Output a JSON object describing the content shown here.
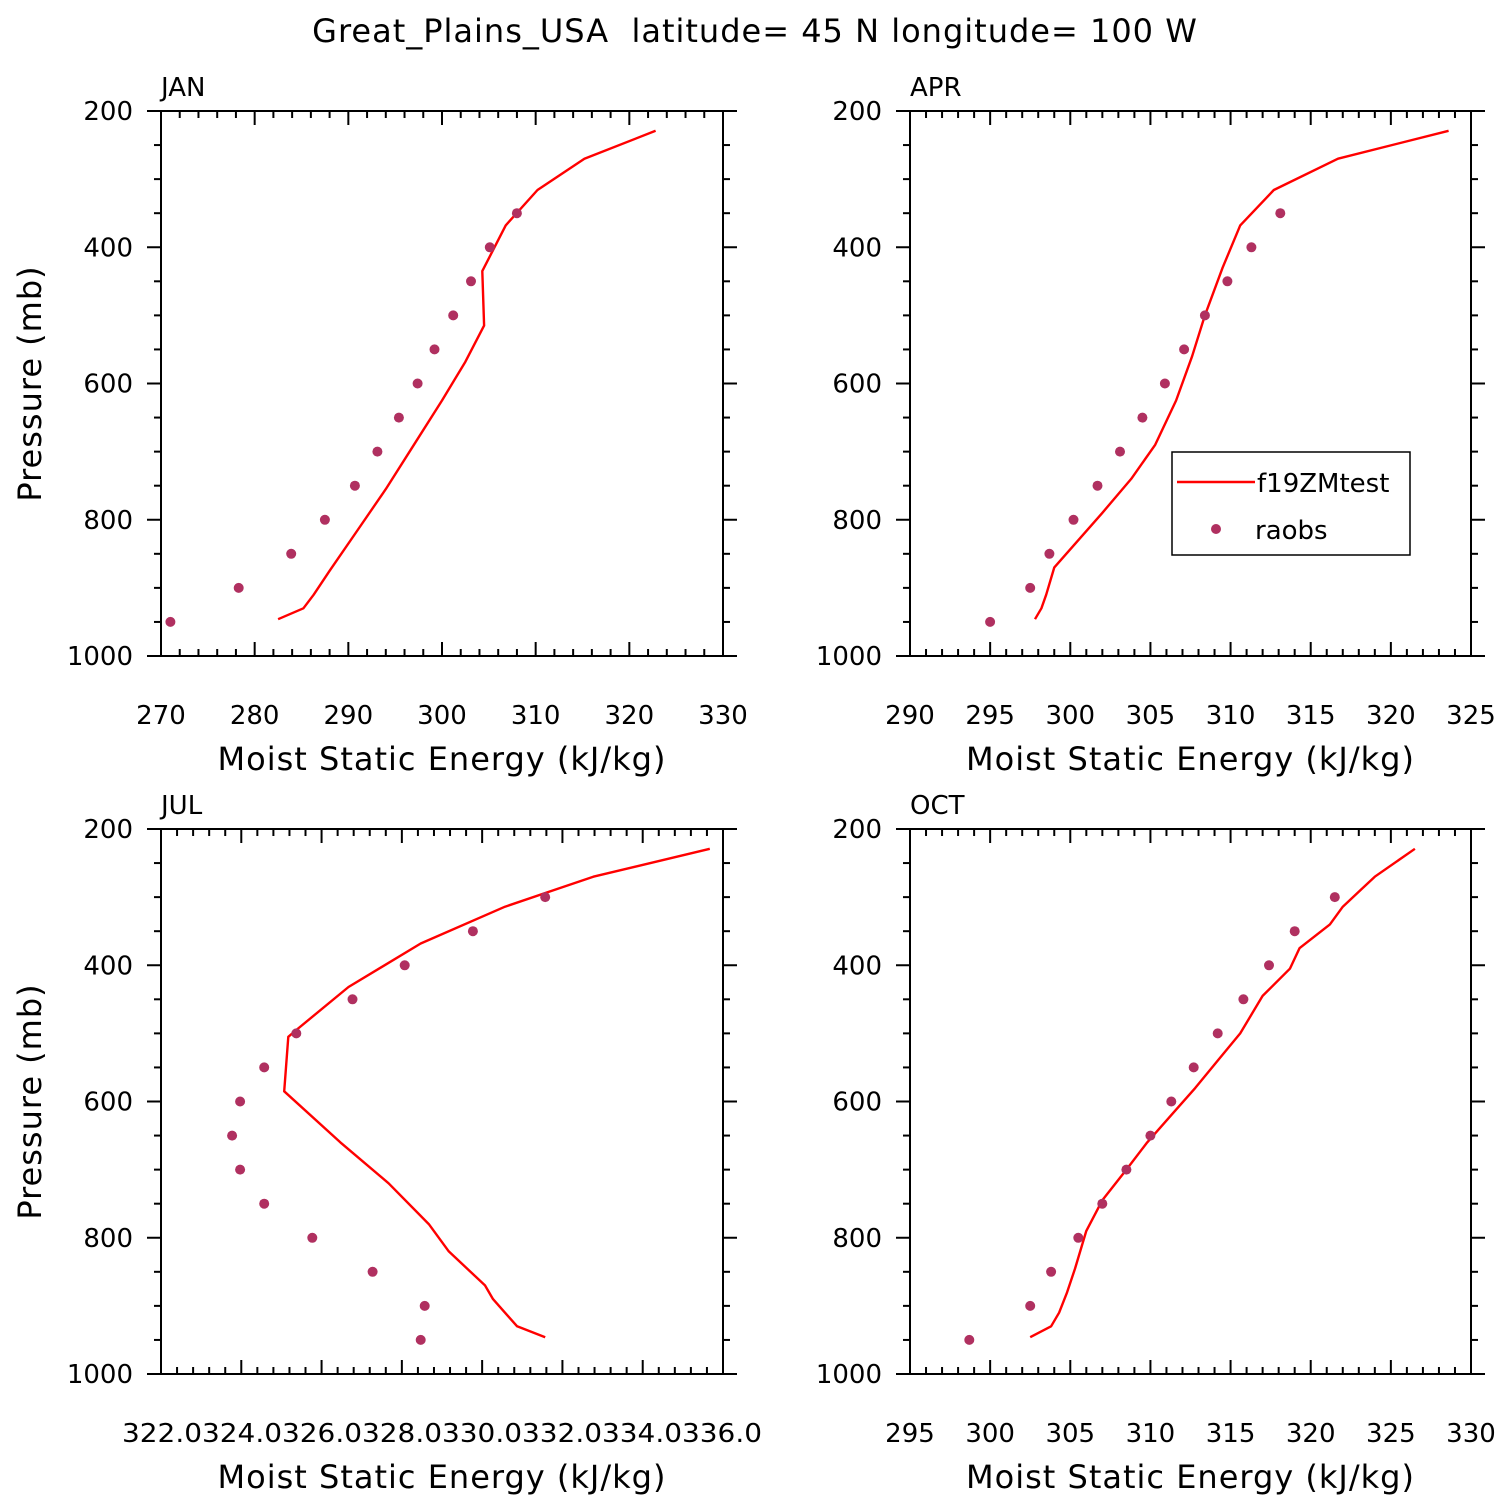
{
  "title": "Great_Plains_USA  latitude= 45 N longitude= 100 W",
  "legend": {
    "position": "inside APR panel, right-middle",
    "entries": [
      {
        "label": "f19ZMtest",
        "style": "line",
        "color": "#ff0000"
      },
      {
        "label": "raobs",
        "style": "marker",
        "color": "#b03060"
      }
    ]
  },
  "colors": {
    "model_line": "#ff0000",
    "obs_marker": "#b03060",
    "axes": "#000000"
  },
  "chart_data": [
    {
      "type": "line",
      "panel": "JAN",
      "xlabel": "Moist Static Energy (kJ/kg)",
      "ylabel": "Pressure (mb)",
      "xlim": [
        270,
        330
      ],
      "ylim": [
        1000,
        200
      ],
      "y_scale": "linear, inverted",
      "xticks": [
        270,
        280,
        290,
        300,
        310,
        320,
        330
      ],
      "xtick_labels": [
        "270",
        "280",
        "290",
        "300",
        "310",
        "320",
        "330"
      ],
      "yticks": [
        200,
        400,
        600,
        800,
        1000
      ],
      "ytick_labels": [
        "200",
        "400",
        "600",
        "800",
        "1000"
      ],
      "series": [
        {
          "name": "f19ZMtest",
          "kind": "line",
          "points": [
            [
              282.5,
              946
            ],
            [
              285.2,
              930
            ],
            [
              286.3,
              910
            ],
            [
              288.0,
              875
            ],
            [
              291,
              815
            ],
            [
              294,
              755
            ],
            [
              297,
              690
            ],
            [
              300.0,
              625
            ],
            [
              302.5,
              568
            ],
            [
              304.5,
              515
            ],
            [
              304.3,
              435
            ],
            [
              306.8,
              368
            ],
            [
              310.2,
              316
            ],
            [
              315.2,
              270
            ],
            [
              322.8,
              229
            ]
          ]
        },
        {
          "name": "raobs",
          "kind": "scatter",
          "points": [
            [
              271.0,
              950
            ],
            [
              278.3,
              900
            ],
            [
              283.9,
              850
            ],
            [
              287.5,
              800
            ],
            [
              290.7,
              750
            ],
            [
              293.1,
              700
            ],
            [
              295.4,
              650
            ],
            [
              297.4,
              600
            ],
            [
              299.2,
              550
            ],
            [
              301.2,
              500
            ],
            [
              303.1,
              450
            ],
            [
              305.1,
              400
            ],
            [
              308.0,
              350
            ]
          ]
        }
      ]
    },
    {
      "type": "line",
      "panel": "APR",
      "xlabel": "Moist Static Energy (kJ/kg)",
      "ylabel": "",
      "xlim": [
        290,
        325
      ],
      "ylim": [
        1000,
        200
      ],
      "y_scale": "linear, inverted",
      "xticks": [
        290,
        295,
        300,
        305,
        310,
        315,
        320,
        325
      ],
      "xtick_labels": [
        "290",
        "295",
        "300",
        "305",
        "310",
        "315",
        "320",
        "325"
      ],
      "yticks": [
        200,
        400,
        600,
        800,
        1000
      ],
      "ytick_labels": [
        "200",
        "400",
        "600",
        "800",
        "1000"
      ],
      "series": [
        {
          "name": "f19ZMtest",
          "kind": "line",
          "points": [
            [
              297.8,
              946
            ],
            [
              298.2,
              930
            ],
            [
              298.5,
              910
            ],
            [
              299.0,
              870
            ],
            [
              300.5,
              830
            ],
            [
              302.0,
              790
            ],
            [
              303.8,
              740
            ],
            [
              305.3,
              690
            ],
            [
              306.6,
              625
            ],
            [
              307.6,
              560
            ],
            [
              308.4,
              500
            ],
            [
              309.5,
              430
            ],
            [
              310.6,
              368
            ],
            [
              312.7,
              316
            ],
            [
              316.7,
              270
            ],
            [
              323.6,
              229
            ]
          ]
        },
        {
          "name": "raobs",
          "kind": "scatter",
          "points": [
            [
              295.0,
              950
            ],
            [
              297.5,
              900
            ],
            [
              298.7,
              850
            ],
            [
              300.2,
              800
            ],
            [
              301.7,
              750
            ],
            [
              303.1,
              700
            ],
            [
              304.5,
              650
            ],
            [
              305.9,
              600
            ],
            [
              307.1,
              550
            ],
            [
              308.4,
              500
            ],
            [
              309.8,
              450
            ],
            [
              311.3,
              400
            ],
            [
              313.1,
              350
            ]
          ]
        }
      ]
    },
    {
      "type": "line",
      "panel": "JUL",
      "xlabel": "Moist Static Energy (kJ/kg)",
      "ylabel": "Pressure (mb)",
      "xlim": [
        322.03,
        336.03
      ],
      "ylim": [
        1000,
        200
      ],
      "y_scale": "linear, inverted",
      "xticks": [
        322.03,
        324.03,
        326.03,
        328.03,
        330.03,
        332.03,
        334.03,
        336.03
      ],
      "xtick_labels": [
        "322.0",
        "324.0",
        "326.0",
        "328.0",
        "330.0",
        "332.0",
        "334.0",
        "336.0"
      ],
      "xtick_label_text": "322.0324.0326.0328.0330.0332.0334.0336.0",
      "yticks": [
        200,
        400,
        600,
        800,
        1000
      ],
      "ytick_labels": [
        "200",
        "400",
        "600",
        "800",
        "1000"
      ],
      "series": [
        {
          "name": "f19ZMtest",
          "kind": "line",
          "points": [
            [
              331.6,
              946
            ],
            [
              330.9,
              930
            ],
            [
              330.6,
              910
            ],
            [
              330.3,
              890
            ],
            [
              330.1,
              870
            ],
            [
              329.2,
              820
            ],
            [
              328.7,
              780
            ],
            [
              327.7,
              720
            ],
            [
              326.5,
              660
            ],
            [
              325.1,
              585
            ],
            [
              325.2,
              505
            ],
            [
              325.4,
              495
            ],
            [
              326.7,
              432
            ],
            [
              328.5,
              368
            ],
            [
              330.6,
              314
            ],
            [
              332.8,
              270
            ],
            [
              335.7,
              229
            ]
          ]
        },
        {
          "name": "raobs",
          "kind": "scatter",
          "points": [
            [
              328.5,
              950
            ],
            [
              328.6,
              900
            ],
            [
              327.3,
              850
            ],
            [
              325.8,
              800
            ],
            [
              324.6,
              750
            ],
            [
              324.0,
              700
            ],
            [
              323.8,
              650
            ],
            [
              324.0,
              600
            ],
            [
              324.6,
              550
            ],
            [
              325.4,
              500
            ],
            [
              326.8,
              450
            ],
            [
              328.1,
              400
            ],
            [
              329.8,
              350
            ],
            [
              331.6,
              300
            ]
          ]
        }
      ]
    },
    {
      "type": "line",
      "panel": "OCT",
      "xlabel": "Moist Static Energy (kJ/kg)",
      "ylabel": "",
      "xlim": [
        295,
        330
      ],
      "ylim": [
        1000,
        200
      ],
      "y_scale": "linear, inverted",
      "xticks": [
        295,
        300,
        305,
        310,
        315,
        320,
        325,
        330
      ],
      "xtick_labels": [
        "295",
        "300",
        "305",
        "310",
        "315",
        "320",
        "325",
        "330"
      ],
      "yticks": [
        200,
        400,
        600,
        800,
        1000
      ],
      "ytick_labels": [
        "200",
        "400",
        "600",
        "800",
        "1000"
      ],
      "series": [
        {
          "name": "f19ZMtest",
          "kind": "line",
          "points": [
            [
              302.5,
              946
            ],
            [
              303.8,
              930
            ],
            [
              304.3,
              910
            ],
            [
              304.8,
              880
            ],
            [
              305.3,
              845
            ],
            [
              306.0,
              790
            ],
            [
              307.0,
              745
            ],
            [
              308.5,
              700
            ],
            [
              309.8,
              660
            ],
            [
              311.3,
              620
            ],
            [
              312.8,
              580
            ],
            [
              314.2,
              540
            ],
            [
              315.6,
              500
            ],
            [
              317.0,
              445
            ],
            [
              318.7,
              405
            ],
            [
              319.3,
              375
            ],
            [
              321.2,
              340
            ],
            [
              322.0,
              314
            ],
            [
              324.0,
              270
            ],
            [
              326.5,
              229
            ]
          ]
        },
        {
          "name": "raobs",
          "kind": "scatter",
          "points": [
            [
              298.7,
              950
            ],
            [
              302.5,
              900
            ],
            [
              303.8,
              850
            ],
            [
              305.5,
              800
            ],
            [
              307.0,
              750
            ],
            [
              308.5,
              700
            ],
            [
              310.0,
              650
            ],
            [
              311.3,
              600
            ],
            [
              312.7,
              550
            ],
            [
              314.2,
              500
            ],
            [
              315.8,
              450
            ],
            [
              317.4,
              400
            ],
            [
              319.0,
              350
            ],
            [
              321.5,
              300
            ]
          ]
        }
      ]
    }
  ]
}
